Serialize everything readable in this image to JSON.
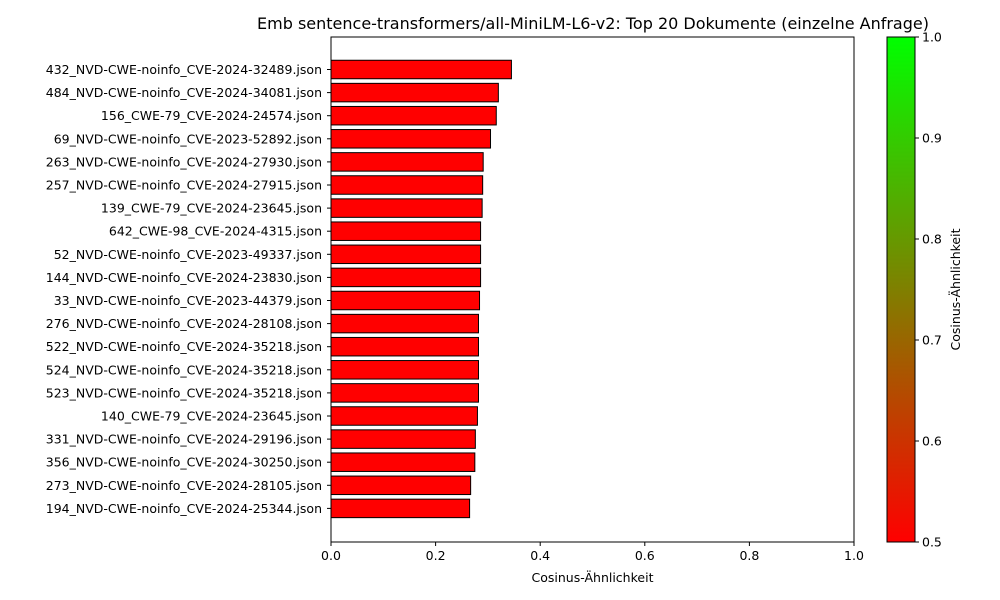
{
  "chart_data": {
    "type": "bar",
    "orientation": "horizontal",
    "title": "Emb sentence-transformers/all-MiniLM-L6-v2: Top 20 Dokumente (einzelne Anfrage)",
    "xlabel": "Cosinus-Ähnlichkeit",
    "ylabel": "",
    "xlim": [
      0,
      1.0
    ],
    "x_ticks": [
      "0.0",
      "0.2",
      "0.4",
      "0.6",
      "0.8",
      "1.0"
    ],
    "grid": false,
    "categories": [
      "432_NVD-CWE-noinfo_CVE-2024-32489.json",
      "484_NVD-CWE-noinfo_CVE-2024-34081.json",
      "156_CWE-79_CVE-2024-24574.json",
      "69_NVD-CWE-noinfo_CVE-2023-52892.json",
      "263_NVD-CWE-noinfo_CVE-2024-27930.json",
      "257_NVD-CWE-noinfo_CVE-2024-27915.json",
      "139_CWE-79_CVE-2024-23645.json",
      "642_CWE-98_CVE-2024-4315.json",
      "52_NVD-CWE-noinfo_CVE-2023-49337.json",
      "144_NVD-CWE-noinfo_CVE-2024-23830.json",
      "33_NVD-CWE-noinfo_CVE-2023-44379.json",
      "276_NVD-CWE-noinfo_CVE-2024-28108.json",
      "522_NVD-CWE-noinfo_CVE-2024-35218.json",
      "524_NVD-CWE-noinfo_CVE-2024-35218.json",
      "523_NVD-CWE-noinfo_CVE-2024-35218.json",
      "140_CWE-79_CVE-2024-23645.json",
      "331_NVD-CWE-noinfo_CVE-2024-29196.json",
      "356_NVD-CWE-noinfo_CVE-2024-30250.json",
      "273_NVD-CWE-noinfo_CVE-2024-28105.json",
      "194_NVD-CWE-noinfo_CVE-2024-25344.json"
    ],
    "values": [
      0.345,
      0.32,
      0.316,
      0.305,
      0.291,
      0.29,
      0.289,
      0.286,
      0.286,
      0.286,
      0.284,
      0.282,
      0.282,
      0.282,
      0.282,
      0.28,
      0.276,
      0.275,
      0.267,
      0.265
    ],
    "bar_color": "#ff0000",
    "bar_edge_color": "#000000",
    "colorbar": {
      "label": "Cosinus-Ähnlichkeit",
      "range": [
        0.5,
        1.0
      ],
      "ticks": [
        "0.5",
        "0.6",
        "0.7",
        "0.8",
        "0.9",
        "1.0"
      ],
      "color_low": "#ff0000",
      "color_high": "#00ff00"
    }
  }
}
